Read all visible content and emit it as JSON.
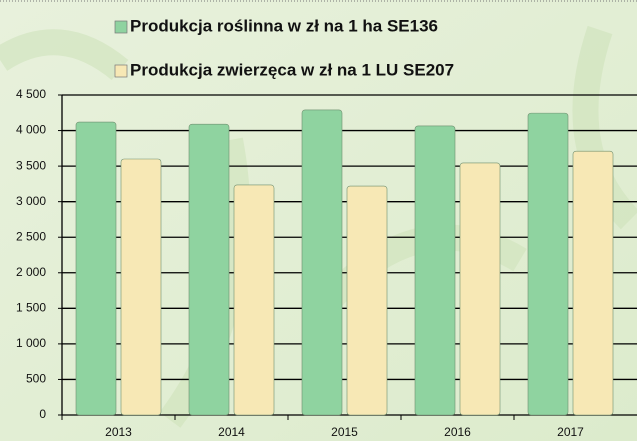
{
  "chart_data": {
    "type": "bar",
    "categories": [
      "2013",
      "2014",
      "2015",
      "2016",
      "2017"
    ],
    "series": [
      {
        "name": "Produkcja roślinna w zł na 1 ha SE136",
        "color": "#8fd3a0",
        "values": [
          4120,
          4090,
          4290,
          4065,
          4245
        ]
      },
      {
        "name": "Produkcja zwierzęca w zł na 1 LU SE207",
        "color": "#f7e8b5",
        "values": [
          3600,
          3235,
          3220,
          3545,
          3710
        ]
      }
    ],
    "ylim": [
      0,
      4500
    ],
    "yticks": [
      0,
      500,
      {
        "value": 1000,
        "label": "1 000"
      },
      {
        "value": 1500,
        "label": "1 500"
      },
      {
        "value": 2000,
        "label": "2 000"
      },
      {
        "value": 2500,
        "label": "2 500"
      },
      {
        "value": 3000,
        "label": "3 000"
      },
      {
        "value": 3500,
        "label": "3 500"
      },
      {
        "value": 4000,
        "label": "4 000"
      },
      {
        "value": 4500,
        "label": "4 500"
      }
    ],
    "grid": true
  }
}
